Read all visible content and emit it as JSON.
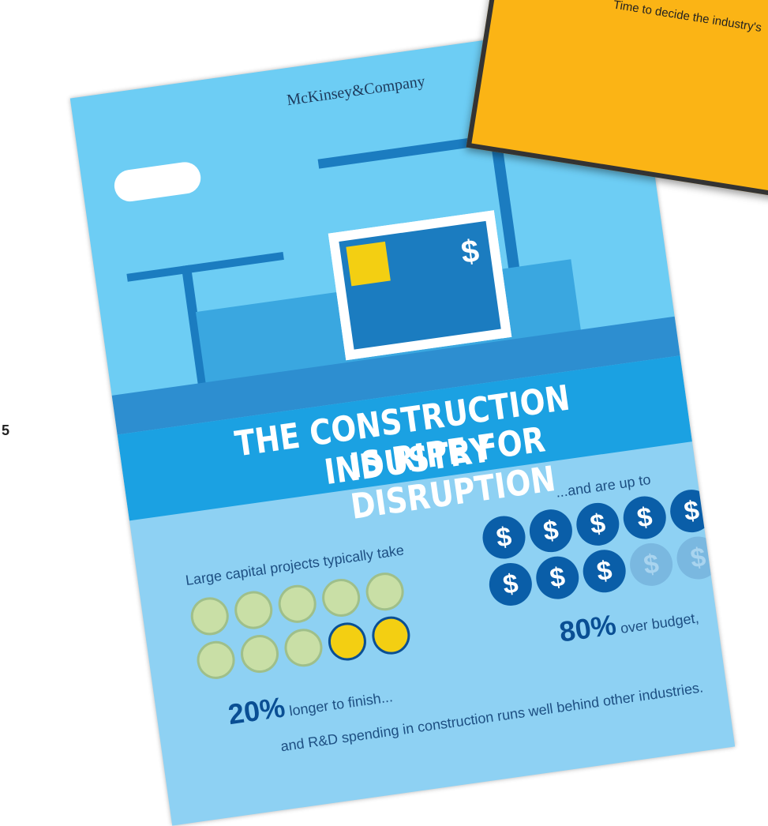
{
  "poster": {
    "brand": "McKinsey&Company",
    "headline_line1": "THE CONSTRUCTION INDUSTRY",
    "headline_line2": "IS RIPE FOR DISRUPTION",
    "screen_symbol": "$",
    "left_intro": "Large capital projects typically take",
    "left_stat": "20%",
    "left_stat_text": "longer to finish...",
    "right_intro": "...and are up to",
    "right_stat": "80%",
    "right_stat_text": "over budget,",
    "dollar_symbol": "$",
    "footer_text": "and R&D spending in construction runs well behind other industries."
  },
  "card": {
    "subtitle": "Time to decide the industry's"
  },
  "side_text": "5"
}
